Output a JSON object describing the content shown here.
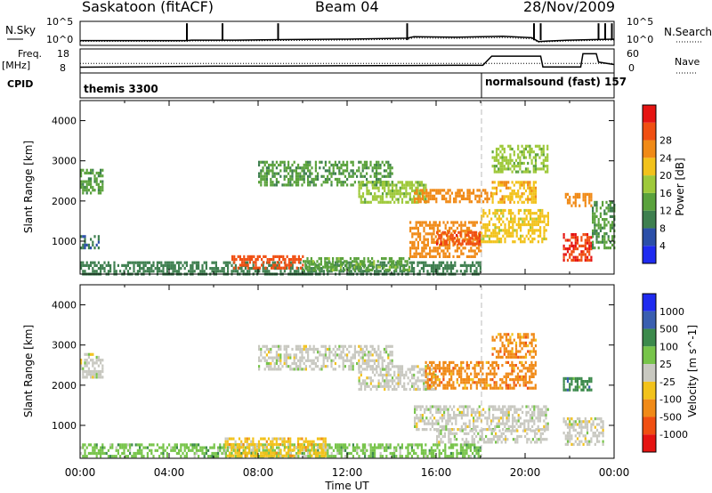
{
  "header": {
    "station": "Saskatoon (fitACF)",
    "beam": "Beam 04",
    "date": "28/Nov/2009"
  },
  "strip_nsky": {
    "label": "N.Sky",
    "ticks_left": [
      "10^5",
      "10^0"
    ],
    "right_label": "N.Search",
    "ticks_right": [
      "10^5",
      "10^0"
    ]
  },
  "strip_freq": {
    "label_top": "Freq.",
    "label_unit": "[MHz]",
    "ticks_left": [
      "18",
      "8"
    ],
    "right_label": "Nave",
    "ticks_right": [
      "60",
      "0"
    ]
  },
  "cpid": {
    "label": "CPID",
    "modes": [
      {
        "text": "themis 3300",
        "start_hour": 0
      },
      {
        "text": "normalsound (fast) 157",
        "start_hour": 18
      }
    ]
  },
  "colors": {
    "power": [
      "#1f2bf0",
      "#2b4fa8",
      "#3e7f4f",
      "#5aa23c",
      "#9ec93a",
      "#f2c21b",
      "#f08a17",
      "#f04f12",
      "#e51412"
    ],
    "velocity": [
      "#1f2bf0",
      "#3a5fb0",
      "#3c8a4c",
      "#77c44a",
      "#c8c8c0",
      "#f2c21b",
      "#f08a17",
      "#f04f12",
      "#e51412"
    ],
    "ground": "#c8c8c0"
  },
  "chart_data": [
    {
      "type": "heatmap",
      "name": "power",
      "ylabel": "Slant Range [km]",
      "xlim": [
        0,
        24
      ],
      "ylim": [
        180,
        4500
      ],
      "ytick_labels": [
        "1000",
        "2000",
        "3000",
        "4000"
      ],
      "ytick_values": [
        1000,
        2000,
        3000,
        4000
      ],
      "colorbar_label": "Power [dB]",
      "colorbar_ticks": [
        "4",
        "8",
        "12",
        "16",
        "20",
        "24",
        "28"
      ],
      "colorbar_range": [
        0,
        30
      ],
      "regions": [
        {
          "t": [
            0.0,
            1.0
          ],
          "r": [
            2200,
            2800
          ],
          "v": 10
        },
        {
          "t": [
            0.0,
            0.8
          ],
          "r": [
            850,
            1150
          ],
          "v": 6
        },
        {
          "t": [
            0.0,
            18.0
          ],
          "r": [
            200,
            500
          ],
          "v": 8
        },
        {
          "t": [
            6.8,
            10.0
          ],
          "r": [
            350,
            650
          ],
          "v": 26
        },
        {
          "t": [
            10.0,
            14.8
          ],
          "r": [
            300,
            600
          ],
          "v": 12
        },
        {
          "t": [
            8.0,
            14.0
          ],
          "r": [
            2400,
            3000
          ],
          "v": 10
        },
        {
          "t": [
            12.5,
            15.5
          ],
          "r": [
            2000,
            2500
          ],
          "v": 14
        },
        {
          "t": [
            15.0,
            18.5
          ],
          "r": [
            2000,
            2300
          ],
          "v": 22
        },
        {
          "t": [
            14.8,
            18.0
          ],
          "r": [
            600,
            1500
          ],
          "v": 22
        },
        {
          "t": [
            16.0,
            18.0
          ],
          "r": [
            900,
            1250
          ],
          "v": 27
        },
        {
          "t": [
            18.0,
            21.0
          ],
          "r": [
            1000,
            1800
          ],
          "v": 18
        },
        {
          "t": [
            18.5,
            20.5
          ],
          "r": [
            1950,
            2500
          ],
          "v": 20
        },
        {
          "t": [
            18.5,
            21.0
          ],
          "r": [
            2700,
            3400
          ],
          "v": 14
        },
        {
          "t": [
            21.7,
            23.0
          ],
          "r": [
            1900,
            2200
          ],
          "v": 22
        },
        {
          "t": [
            21.7,
            23.0
          ],
          "r": [
            500,
            1200
          ],
          "v": 28
        },
        {
          "t": [
            23.0,
            24.0
          ],
          "r": [
            800,
            2000
          ],
          "v": 10
        }
      ]
    },
    {
      "type": "heatmap",
      "name": "velocity",
      "ylabel": "Slant Range [km]",
      "xlabel": "Time UT",
      "xlim": [
        0,
        24
      ],
      "ylim": [
        180,
        4500
      ],
      "ytick_labels": [
        "1000",
        "2000",
        "3000",
        "4000"
      ],
      "ytick_values": [
        1000,
        2000,
        3000,
        4000
      ],
      "xtick_labels": [
        "00:00",
        "04:00",
        "08:00",
        "12:00",
        "16:00",
        "20:00",
        "00:00"
      ],
      "xtick_values": [
        0,
        4,
        8,
        12,
        16,
        20,
        24
      ],
      "colorbar_label": "Velocity [m s^-1]",
      "colorbar_ticks": [
        "1000",
        "500",
        "100",
        "25",
        "-25",
        "-100",
        "-500",
        "-1000"
      ],
      "regions": [
        {
          "t": [
            0.0,
            1.0
          ],
          "r": [
            2200,
            2800
          ],
          "v": 0
        },
        {
          "t": [
            0.0,
            18.0
          ],
          "r": [
            200,
            550
          ],
          "v": 50
        },
        {
          "t": [
            6.5,
            11.0
          ],
          "r": [
            250,
            700
          ],
          "v": -80
        },
        {
          "t": [
            8.0,
            14.0
          ],
          "r": [
            2400,
            3000
          ],
          "v": 0
        },
        {
          "t": [
            12.5,
            16.0
          ],
          "r": [
            1900,
            2500
          ],
          "v": 0
        },
        {
          "t": [
            15.5,
            20.5
          ],
          "r": [
            1900,
            2600
          ],
          "v": -300
        },
        {
          "t": [
            18.5,
            20.5
          ],
          "r": [
            2700,
            3300
          ],
          "v": -300
        },
        {
          "t": [
            15.0,
            21.0
          ],
          "r": [
            900,
            1500
          ],
          "v": 0
        },
        {
          "t": [
            16.0,
            21.0
          ],
          "r": [
            600,
            900
          ],
          "v": 0
        },
        {
          "t": [
            21.7,
            23.5
          ],
          "r": [
            500,
            1200
          ],
          "v": 0
        },
        {
          "t": [
            21.7,
            23.0
          ],
          "r": [
            1900,
            2200
          ],
          "v": 300
        }
      ]
    },
    {
      "type": "line",
      "name": "n_sky",
      "x": [
        0,
        0.3,
        2,
        4.8,
        5,
        7,
        9,
        12,
        14.7,
        15,
        17,
        19,
        20.3,
        20.6,
        21,
        22,
        23,
        24
      ],
      "values": [
        1.0,
        1.0,
        1.0,
        1.0,
        1.1,
        1.1,
        1.2,
        1.3,
        1.5,
        1.8,
        1.7,
        1.9,
        1.6,
        0.8,
        0.9,
        1.1,
        1.2,
        1.3
      ],
      "spike_hours": [
        4.8,
        6.4,
        8.9,
        14.7,
        20.4,
        20.7,
        23.3,
        23.6,
        23.9
      ]
    },
    {
      "type": "line",
      "name": "frequency_and_nave",
      "freq_x": [
        0,
        3,
        6,
        9,
        12,
        15,
        17,
        18.1,
        18.5,
        20.7,
        20.8,
        22.5,
        22.6,
        23.2,
        23.3,
        24
      ],
      "freq_mhz": [
        10.4,
        10.6,
        10.8,
        10.9,
        11.0,
        11.1,
        11.2,
        11.2,
        15.0,
        15.0,
        10.5,
        10.5,
        16.0,
        16.0,
        12.5,
        11.5
      ]
    }
  ]
}
